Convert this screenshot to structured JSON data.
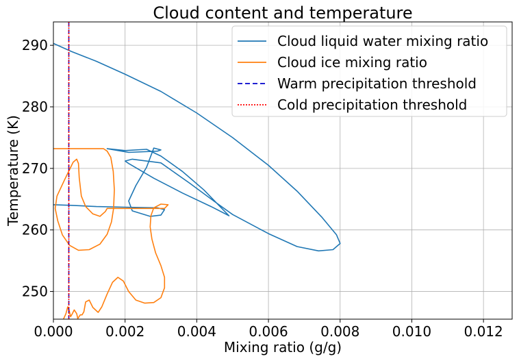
{
  "chart_data": {
    "type": "line",
    "title": "Cloud content and temperature",
    "xlabel": "Mixing ratio (g/g)",
    "ylabel": "Temperature (K)",
    "xlim": [
      0.0,
      0.0128
    ],
    "ylim": [
      245.5,
      293.8
    ],
    "grid": true,
    "legend_position": "upper-right",
    "x_ticks": [
      {
        "value": 0.0,
        "label": "0.000"
      },
      {
        "value": 0.002,
        "label": "0.002"
      },
      {
        "value": 0.004,
        "label": "0.004"
      },
      {
        "value": 0.006,
        "label": "0.006"
      },
      {
        "value": 0.008,
        "label": "0.008"
      },
      {
        "value": 0.01,
        "label": "0.010"
      },
      {
        "value": 0.012,
        "label": "0.012"
      }
    ],
    "y_ticks": [
      {
        "value": 250,
        "label": "250"
      },
      {
        "value": 260,
        "label": "260"
      },
      {
        "value": 270,
        "label": "270"
      },
      {
        "value": 280,
        "label": "280"
      },
      {
        "value": 290,
        "label": "290"
      }
    ],
    "series": [
      {
        "name": "Cloud liquid water mixing ratio",
        "color": "#1f77b4",
        "style": "solid",
        "points": [
          [
            0.0,
            290.3
          ],
          [
            0.0005,
            289.0
          ],
          [
            0.0012,
            287.4
          ],
          [
            0.002,
            285.3
          ],
          [
            0.003,
            282.5
          ],
          [
            0.004,
            279.0
          ],
          [
            0.005,
            275.0
          ],
          [
            0.006,
            270.5
          ],
          [
            0.0068,
            266.3
          ],
          [
            0.0075,
            262.0
          ],
          [
            0.0079,
            259.2
          ],
          [
            0.008,
            257.8
          ],
          [
            0.0078,
            256.8
          ],
          [
            0.0074,
            256.6
          ],
          [
            0.0068,
            257.3
          ],
          [
            0.006,
            259.4
          ],
          [
            0.005,
            262.5
          ],
          [
            0.0045,
            264.6
          ],
          [
            0.0038,
            267.6
          ],
          [
            0.003,
            270.9
          ],
          [
            0.0022,
            271.5
          ],
          [
            0.002,
            271.2
          ],
          [
            0.0021,
            270.8
          ],
          [
            0.0028,
            268.4
          ],
          [
            0.0036,
            266.0
          ],
          [
            0.0044,
            263.8
          ],
          [
            0.0049,
            262.3
          ],
          [
            0.0047,
            263.5
          ],
          [
            0.0042,
            266.5
          ],
          [
            0.0036,
            269.5
          ],
          [
            0.003,
            272.0
          ],
          [
            0.0026,
            273.1
          ],
          [
            0.002,
            272.9
          ],
          [
            0.0015,
            273.2
          ],
          [
            0.0021,
            272.6
          ],
          [
            0.0029,
            272.8
          ],
          [
            0.003,
            273.0
          ],
          [
            0.0028,
            273.3
          ],
          [
            0.0026,
            270.2
          ],
          [
            0.0023,
            267.2
          ],
          [
            0.0021,
            264.7
          ],
          [
            0.0022,
            263.1
          ],
          [
            0.0027,
            262.2
          ],
          [
            0.003,
            262.4
          ],
          [
            0.0031,
            263.3
          ],
          [
            0.0029,
            263.6
          ],
          [
            0.002,
            263.7
          ],
          [
            0.0012,
            263.8
          ],
          [
            0.0005,
            264.0
          ],
          [
            0.0,
            264.1
          ]
        ]
      },
      {
        "name": "Cloud ice mixing ratio",
        "color": "#ff7f0e",
        "style": "solid",
        "points": [
          [
            0.0,
            273.2
          ],
          [
            0.0003,
            273.2
          ],
          [
            0.0007,
            273.2
          ],
          [
            0.001,
            273.2
          ],
          [
            0.0014,
            273.2
          ],
          [
            0.0015,
            272.8
          ],
          [
            0.0016,
            271.8
          ],
          [
            0.00167,
            269.5
          ],
          [
            0.0017,
            266.5
          ],
          [
            0.00168,
            263.5
          ],
          [
            0.00162,
            261.3
          ],
          [
            0.0015,
            259.3
          ],
          [
            0.0013,
            257.7
          ],
          [
            0.001,
            256.8
          ],
          [
            0.0007,
            256.7
          ],
          [
            0.00045,
            257.5
          ],
          [
            0.00025,
            259.2
          ],
          [
            0.00012,
            261.5
          ],
          [
            5e-05,
            263.5
          ],
          [
            0.0001,
            265.5
          ],
          [
            0.0003,
            268.0
          ],
          [
            0.00055,
            271.0
          ],
          [
            0.00065,
            271.5
          ],
          [
            0.0007,
            270.8
          ],
          [
            0.00072,
            268.5
          ],
          [
            0.00078,
            265.5
          ],
          [
            0.0009,
            263.8
          ],
          [
            0.0011,
            262.6
          ],
          [
            0.0013,
            262.2
          ],
          [
            0.00145,
            263.0
          ],
          [
            0.0015,
            263.5
          ],
          [
            0.0018,
            263.5
          ],
          [
            0.0022,
            263.5
          ],
          [
            0.0027,
            263.5
          ],
          [
            0.0031,
            263.5
          ],
          [
            0.0032,
            264.1
          ],
          [
            0.003,
            264.2
          ],
          [
            0.0028,
            263.6
          ],
          [
            0.00272,
            262.3
          ],
          [
            0.0027,
            260.5
          ],
          [
            0.00275,
            258.5
          ],
          [
            0.00285,
            256.3
          ],
          [
            0.003,
            254.2
          ],
          [
            0.0031,
            252.3
          ],
          [
            0.0031,
            250.6
          ],
          [
            0.003,
            249.0
          ],
          [
            0.0028,
            248.2
          ],
          [
            0.00255,
            248.1
          ],
          [
            0.0023,
            248.6
          ],
          [
            0.0021,
            250.0
          ],
          [
            0.00195,
            251.7
          ],
          [
            0.0018,
            252.3
          ],
          [
            0.00165,
            251.5
          ],
          [
            0.0015,
            249.6
          ],
          [
            0.00135,
            247.5
          ],
          [
            0.00125,
            246.6
          ],
          [
            0.0011,
            247.4
          ],
          [
            0.001,
            248.6
          ],
          [
            0.0009,
            248.3
          ],
          [
            0.00085,
            246.7
          ],
          [
            0.0008,
            246.2
          ],
          [
            0.00075,
            246.2
          ],
          [
            0.00068,
            245.6
          ],
          [
            0.00065,
            246.4
          ],
          [
            0.00058,
            247.0
          ],
          [
            0.00052,
            246.3
          ],
          [
            0.00048,
            245.9
          ],
          [
            0.00044,
            246.9
          ],
          [
            0.0004,
            247.5
          ],
          [
            0.00035,
            246.4
          ],
          [
            0.00028,
            245.5
          ]
        ]
      },
      {
        "name": "Warm precipitation threshold",
        "color": "#0000cc",
        "style": "dashed",
        "x": 0.00043
      },
      {
        "name": "Cold precipitation threshold",
        "color": "#ff0000",
        "style": "dotted",
        "x": 0.00043
      }
    ]
  }
}
